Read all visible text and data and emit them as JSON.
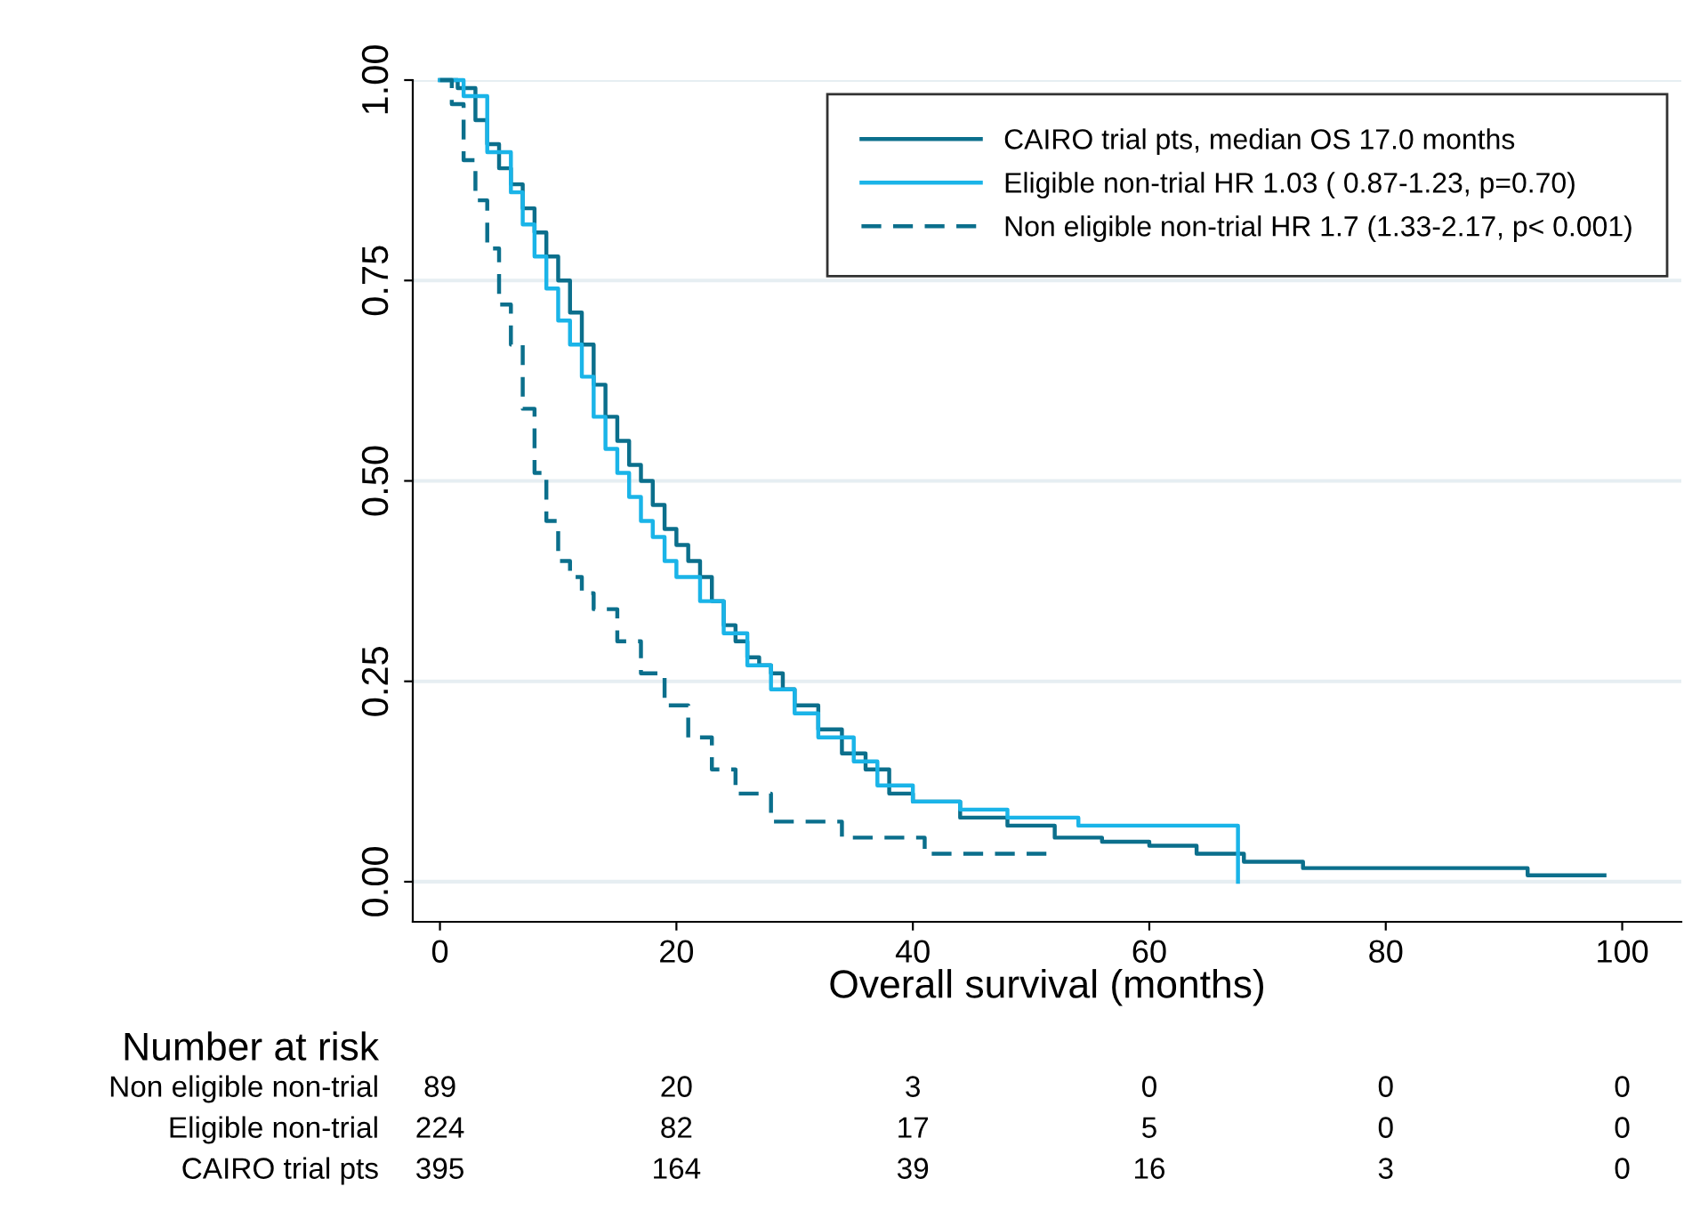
{
  "chart_data": {
    "type": "step",
    "xlabel": "Overall survival (months)",
    "xlim": [
      -2.3,
      105
    ],
    "xticks": [
      0,
      20,
      40,
      60,
      80,
      100
    ],
    "ylim": [
      -0.05,
      1.0
    ],
    "yticks": [
      {
        "value": 0,
        "label": "0.00"
      },
      {
        "value": 0.25,
        "label": "0.25"
      },
      {
        "value": 0.5,
        "label": "0.50"
      },
      {
        "value": 0.75,
        "label": "0.75"
      },
      {
        "value": 1,
        "label": "1.00"
      }
    ],
    "grid": "y",
    "legend": "top right",
    "marker": "none",
    "series": [
      {
        "name": "CAIRO trial pts, median OS 17.0 months",
        "color": "#0b6f8c",
        "line_style": "solid",
        "x": [
          0,
          1.5,
          3,
          4,
          5,
          6,
          7,
          8,
          9,
          10,
          11,
          12,
          13,
          14,
          15,
          16,
          17,
          18,
          19,
          20,
          21,
          22,
          23,
          24,
          25,
          26,
          27,
          28,
          29,
          30,
          32,
          34,
          36,
          38,
          40,
          44,
          48,
          52,
          56,
          60,
          64,
          68,
          73,
          92,
          98.5
        ],
        "values": [
          1.0,
          0.99,
          0.95,
          0.92,
          0.89,
          0.87,
          0.84,
          0.81,
          0.78,
          0.75,
          0.71,
          0.67,
          0.62,
          0.58,
          0.55,
          0.52,
          0.5,
          0.47,
          0.44,
          0.42,
          0.4,
          0.38,
          0.35,
          0.32,
          0.3,
          0.28,
          0.27,
          0.26,
          0.24,
          0.22,
          0.19,
          0.16,
          0.14,
          0.11,
          0.1,
          0.08,
          0.07,
          0.055,
          0.05,
          0.045,
          0.035,
          0.025,
          0.017,
          0.008,
          0.008
        ]
      },
      {
        "name": "Eligible non-trial HR 1.03 ( 0.87-1.23, p=0.70)",
        "color": "#1ab4e8",
        "line_style": "solid",
        "x": [
          0,
          2,
          4,
          6,
          7,
          8,
          9,
          10,
          11,
          12,
          13,
          14,
          15,
          16,
          17,
          18,
          19,
          20,
          22,
          24,
          26,
          28,
          30,
          32,
          35,
          37,
          40,
          44,
          48,
          54,
          67.5,
          67.5
        ],
        "values": [
          1.0,
          0.98,
          0.91,
          0.86,
          0.82,
          0.78,
          0.74,
          0.7,
          0.67,
          0.63,
          0.58,
          0.54,
          0.51,
          0.48,
          0.45,
          0.43,
          0.4,
          0.38,
          0.35,
          0.31,
          0.27,
          0.24,
          0.21,
          0.18,
          0.15,
          0.12,
          0.1,
          0.09,
          0.08,
          0.07,
          0.07,
          0.0
        ]
      },
      {
        "name": "Non eligible non-trial HR 1.7 (1.33-2.17, p< 0.001)",
        "color": "#0b6f8c",
        "line_style": "dashed",
        "x": [
          0,
          1,
          2,
          3,
          4,
          5,
          6,
          7,
          8,
          9,
          10,
          11,
          12,
          13,
          15,
          17,
          19,
          21,
          23,
          25,
          28,
          34,
          41,
          51.5
        ],
        "values": [
          1.0,
          0.97,
          0.9,
          0.85,
          0.79,
          0.72,
          0.67,
          0.59,
          0.51,
          0.45,
          0.4,
          0.38,
          0.36,
          0.34,
          0.3,
          0.26,
          0.22,
          0.18,
          0.14,
          0.11,
          0.075,
          0.055,
          0.035,
          0.035
        ]
      }
    ],
    "annotations": [
      "Number at risk",
      "Non eligible non-trial",
      "89",
      "20",
      "3",
      "0",
      "0",
      "0",
      "Eligible non-trial",
      "224",
      "82",
      "17",
      "5",
      "0",
      "0",
      "CAIRO trial pts",
      "395",
      "164",
      "39",
      "16",
      "3",
      "0"
    ]
  }
}
